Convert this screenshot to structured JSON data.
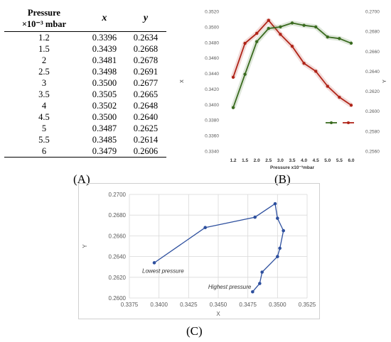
{
  "table": {
    "header_line1": "Pressure",
    "header_line2": "×10⁻³ mbar",
    "col_x": "x",
    "col_y": "y",
    "rows": [
      [
        "1.2",
        "0.3396",
        "0.2634"
      ],
      [
        "1.5",
        "0.3439",
        "0.2668"
      ],
      [
        "2",
        "0.3481",
        "0.2678"
      ],
      [
        "2.5",
        "0.3498",
        "0.2691"
      ],
      [
        "3",
        "0.3500",
        "0.2677"
      ],
      [
        "3.5",
        "0.3505",
        "0.2665"
      ],
      [
        "4",
        "0.3502",
        "0.2648"
      ],
      [
        "4.5",
        "0.3500",
        "0.2640"
      ],
      [
        "5",
        "0.3487",
        "0.2625"
      ],
      [
        "5.5",
        "0.3485",
        "0.2614"
      ],
      [
        "6",
        "0.3479",
        "0.2606"
      ]
    ]
  },
  "labels": {
    "A": "(A)",
    "B": "(B)",
    "C": "(C)"
  },
  "chart_data": [
    {
      "type": "line",
      "panel": "B",
      "categories": [
        "1.2",
        "1.5",
        "2.0",
        "2.5",
        "3.0",
        "3.5",
        "4.0",
        "4.5",
        "5.0",
        "5.5",
        "6.0"
      ],
      "xlabel": "Pressure   x10⁻³mbar",
      "ylabel": "X",
      "y2label": "Y",
      "ylim": [
        0.334,
        0.352
      ],
      "y2lim": [
        0.256,
        0.27
      ],
      "yticks": [
        "0.3340",
        "0.3360",
        "0.3380",
        "0.3400",
        "0.3420",
        "0.3440",
        "0.3460",
        "0.3480",
        "0.3500",
        "0.3520"
      ],
      "y2ticks": [
        "0.2560",
        "0.2580",
        "0.2600",
        "0.2620",
        "0.2640",
        "0.2660",
        "0.2680",
        "0.2700"
      ],
      "series": [
        {
          "values": [
            0.3396,
            0.3439,
            0.3481,
            0.3498,
            0.35,
            0.3505,
            0.3502,
            0.35,
            0.3487,
            0.3485,
            0.3479
          ],
          "axis": "left",
          "color": "#3a6b1f"
        },
        {
          "values": [
            0.2634,
            0.2668,
            0.2678,
            0.2691,
            0.2677,
            0.2665,
            0.2648,
            0.264,
            0.2625,
            0.2614,
            0.2606
          ],
          "axis": "right",
          "color": "#b02418"
        }
      ],
      "legend_position": "right",
      "grid": false
    },
    {
      "type": "line",
      "panel": "C",
      "x": [
        0.3396,
        0.3439,
        0.3481,
        0.3498,
        0.35,
        0.3505,
        0.3502,
        0.35,
        0.3487,
        0.3485,
        0.3479
      ],
      "y": [
        0.2634,
        0.2668,
        0.2678,
        0.2691,
        0.2677,
        0.2665,
        0.2648,
        0.264,
        0.2625,
        0.2614,
        0.2606
      ],
      "xlabel": "X",
      "ylabel": "Y",
      "xlim": [
        0.3375,
        0.3525
      ],
      "ylim": [
        0.26,
        0.27
      ],
      "xticks": [
        "0.3375",
        "0.3400",
        "0.3425",
        "0.3450",
        "0.3475",
        "0.3500",
        "0.3525"
      ],
      "yticks": [
        "0.2600",
        "0.2620",
        "0.2640",
        "0.2660",
        "0.2680",
        "0.2700"
      ],
      "color": "#2d4f9e",
      "grid": true,
      "annotations": [
        "Lowest pressure",
        "Highest pressure"
      ]
    }
  ]
}
